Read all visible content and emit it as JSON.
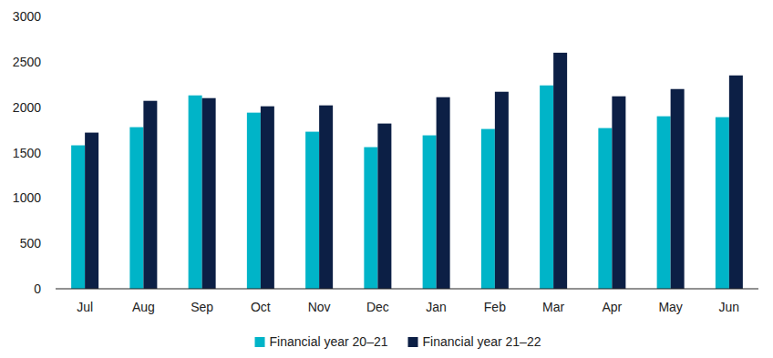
{
  "chart_data": {
    "type": "bar",
    "categories": [
      "Jul",
      "Aug",
      "Sep",
      "Oct",
      "Nov",
      "Dec",
      "Jan",
      "Feb",
      "Mar",
      "Apr",
      "May",
      "Jun"
    ],
    "series": [
      {
        "name": "Financial year 20–21",
        "color": "#00b4c8",
        "values": [
          1580,
          1780,
          2130,
          1940,
          1730,
          1560,
          1690,
          1760,
          2240,
          1770,
          1900,
          1890
        ]
      },
      {
        "name": "Financial year 21–22",
        "color": "#0c1f45",
        "values": [
          1720,
          2070,
          2100,
          2010,
          2020,
          1820,
          2110,
          2170,
          2600,
          2120,
          2200,
          2350
        ]
      }
    ],
    "ylim": [
      0,
      3000
    ],
    "yticks": [
      0,
      500,
      1000,
      1500,
      2000,
      2500,
      3000
    ],
    "grid": false,
    "legend": "bottom"
  }
}
